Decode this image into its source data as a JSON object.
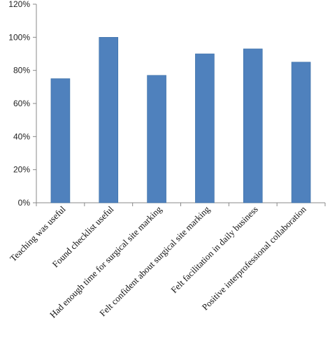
{
  "chart_data": {
    "type": "bar",
    "title": "",
    "xlabel": "",
    "ylabel": "",
    "categories": [
      "Teaching was useful",
      "Found checklist useful",
      "Had enough time for surgical site marking",
      "Felt confident about surgical site marking",
      "Felt facilitation in daily business",
      "Positive interprofessional collaboration"
    ],
    "values": [
      75,
      100,
      77,
      90,
      93,
      85
    ],
    "ylim": [
      0,
      120
    ],
    "yticks": [
      0,
      20,
      40,
      60,
      80,
      100,
      120
    ],
    "ytick_labels": [
      "0%",
      "20%",
      "40%",
      "60%",
      "80%",
      "100%",
      "120%"
    ],
    "grid": false,
    "legend": "none",
    "bar_color": "#4f81bd",
    "bar_border_color": "#3a6ea5"
  }
}
